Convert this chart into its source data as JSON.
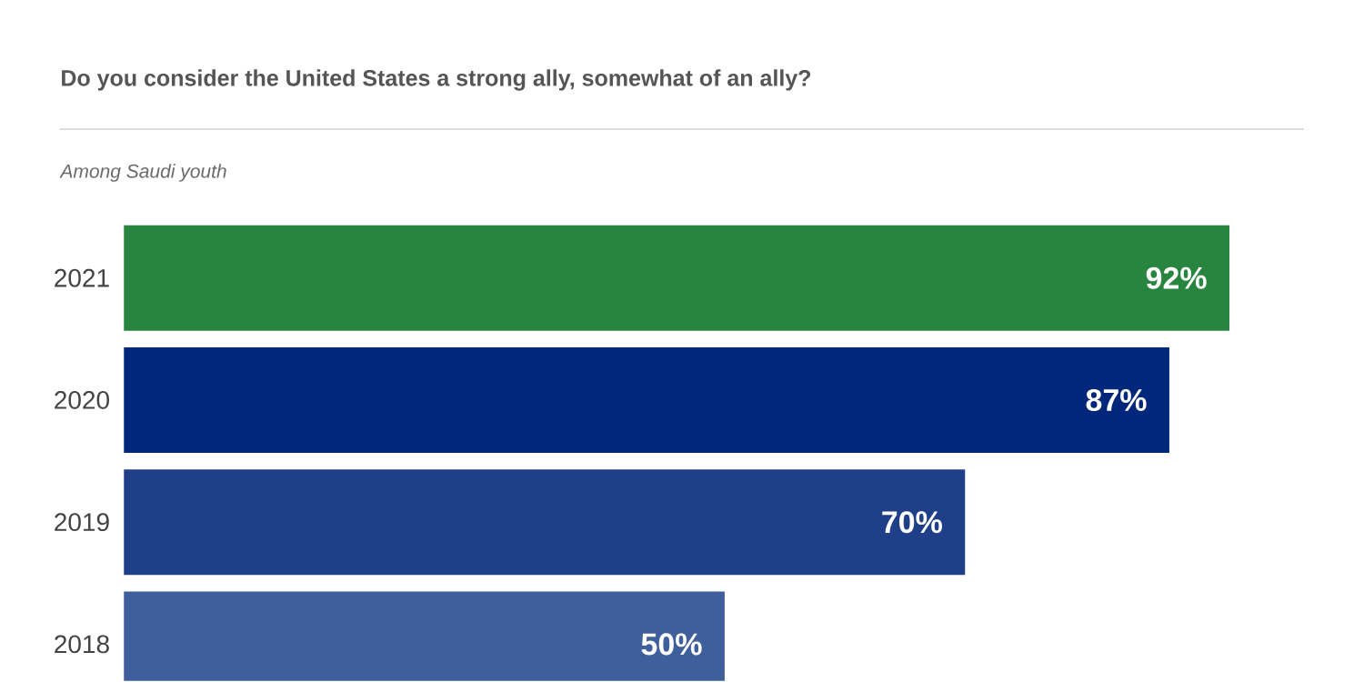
{
  "chart_data": {
    "type": "bar",
    "orientation": "horizontal",
    "title": "Do you consider the United States a strong ally, somewhat of an ally?",
    "subtitle": "Among Saudi youth",
    "categories": [
      "2021",
      "2020",
      "2019",
      "2018"
    ],
    "values": [
      92,
      87,
      70,
      50
    ],
    "value_labels": [
      "92%",
      "87%",
      "70%",
      "50%"
    ],
    "colors": [
      "#27853f",
      "#00277a",
      "#1f4088",
      "#3f5e9c"
    ]
  }
}
